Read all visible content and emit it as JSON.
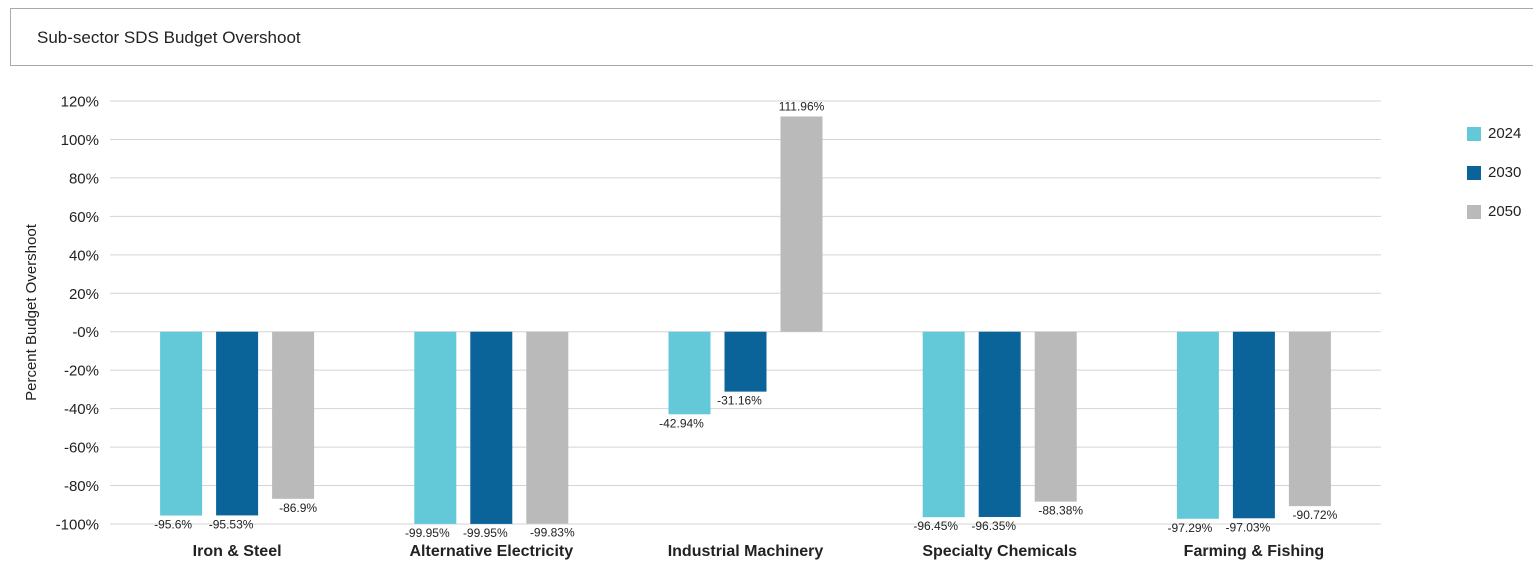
{
  "title": "Sub-sector SDS Budget Overshoot",
  "colors": {
    "2024": "#63c8d8",
    "2030": "#0a6399",
    "2050": "#bababa",
    "grid": "#d4d4d4",
    "text": "#222222"
  },
  "chart_data": {
    "type": "bar",
    "title": "Sub-sector SDS Budget Overshoot",
    "xlabel": "",
    "ylabel": "Percent Budget Overshoot",
    "ylim": [
      -100,
      120
    ],
    "yticks": [
      120,
      100,
      80,
      60,
      40,
      20,
      0,
      -20,
      -40,
      -60,
      -80,
      -100
    ],
    "ytick_labels": [
      "120%",
      "100%",
      "80%",
      "60%",
      "40%",
      "20%",
      "-0%",
      "-20%",
      "-40%",
      "-60%",
      "-80%",
      "-100%"
    ],
    "grid": true,
    "legend_position": "right",
    "categories": [
      "Iron & Steel",
      "Alternative Electricity",
      "Industrial Machinery",
      "Specialty Chemicals",
      "Farming & Fishing"
    ],
    "series": [
      {
        "name": "2024",
        "values": [
          -95.6,
          -99.95,
          -42.94,
          -96.45,
          -97.29
        ],
        "labels": [
          "-95.6%",
          "-99.95%",
          "-42.94%",
          "-96.45%",
          "-97.29%"
        ]
      },
      {
        "name": "2030",
        "values": [
          -95.53,
          -99.95,
          -31.16,
          -96.35,
          -97.03
        ],
        "labels": [
          "-95.53%",
          "-99.95%",
          "-31.16%",
          "-96.35%",
          "-97.03%"
        ]
      },
      {
        "name": "2050",
        "values": [
          -86.9,
          -99.83,
          111.96,
          -88.38,
          -90.72
        ],
        "labels": [
          "-86.9%",
          "-99.83%",
          "111.96%",
          "-88.38%",
          "-90.72%"
        ]
      }
    ]
  }
}
